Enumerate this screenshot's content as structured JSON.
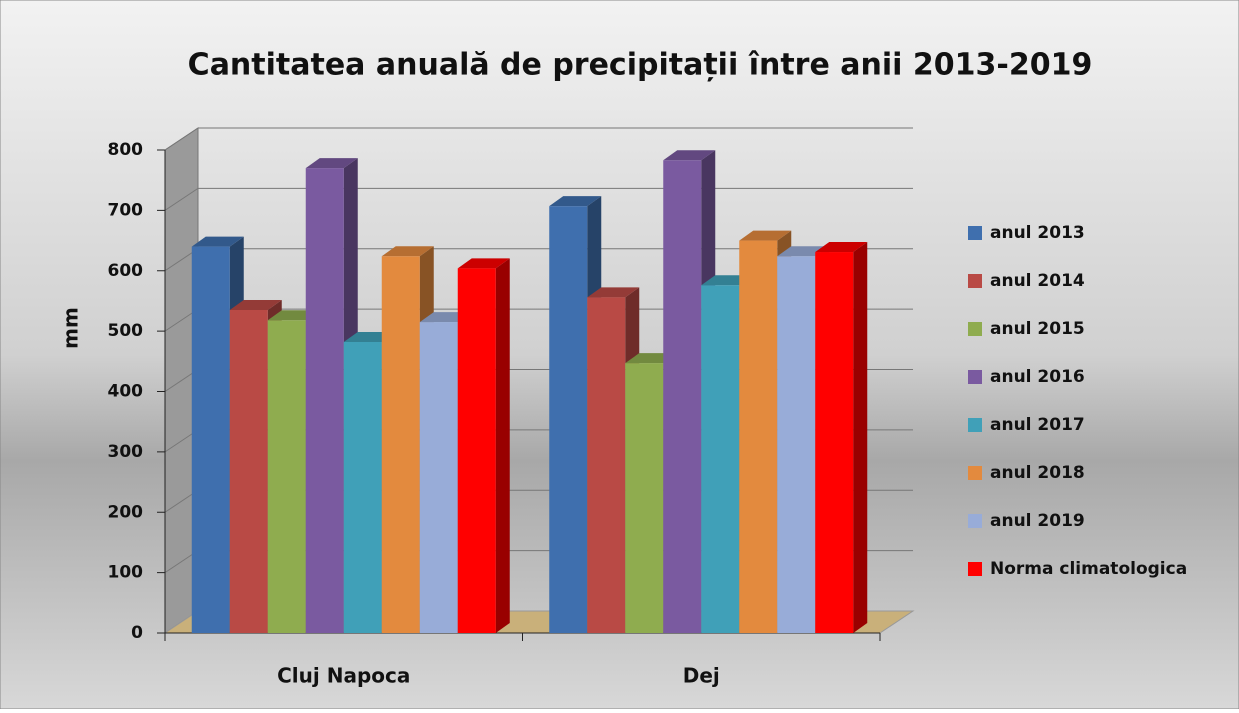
{
  "chart_data": {
    "type": "bar3d",
    "title": "Cantitatea anuală de precipitații între anii 2013-2019",
    "y_label": "mm",
    "categories": [
      "Cluj Napoca",
      "Dej"
    ],
    "series": [
      {
        "name": "anul 2013",
        "color": "#3f6fae",
        "values": [
          640,
          707
        ]
      },
      {
        "name": "anul 2014",
        "color": "#b94a45",
        "values": [
          535,
          556
        ]
      },
      {
        "name": "anul 2015",
        "color": "#8fac4f",
        "values": [
          518,
          447
        ]
      },
      {
        "name": "anul 2016",
        "color": "#7a5aa0",
        "values": [
          770,
          783
        ]
      },
      {
        "name": "anul 2017",
        "color": "#40a0b8",
        "values": [
          482,
          576
        ]
      },
      {
        "name": "anul 2018",
        "color": "#e38a3e",
        "values": [
          624,
          650
        ]
      },
      {
        "name": "anul 2019",
        "color": "#98acd8",
        "values": [
          515,
          624
        ]
      },
      {
        "name": "Norma climatologica",
        "color": "#ff0000",
        "values": [
          604,
          631
        ]
      }
    ],
    "ylim": [
      0,
      800
    ],
    "yticks": [
      0,
      100,
      200,
      300,
      400,
      500,
      600,
      700,
      800
    ],
    "grid": true,
    "legend": "right"
  }
}
